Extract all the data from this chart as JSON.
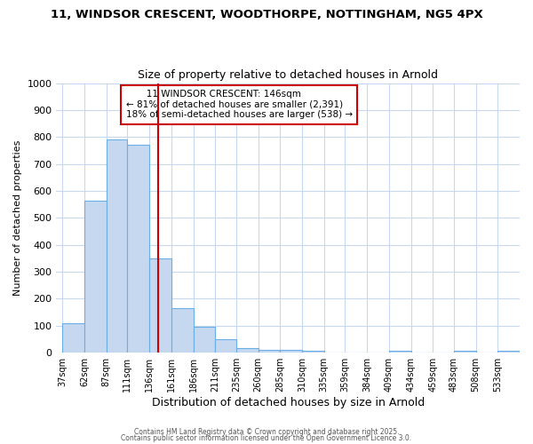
{
  "title_line1": "11, WINDSOR CRESCENT, WOODTHORPE, NOTTINGHAM, NG5 4PX",
  "title_line2": "Size of property relative to detached houses in Arnold",
  "xlabel": "Distribution of detached houses by size in Arnold",
  "ylabel": "Number of detached properties",
  "bar_left_edges": [
    37,
    62,
    87,
    111,
    136,
    161,
    186,
    211,
    235,
    260,
    285,
    310,
    335,
    359,
    384,
    409,
    434,
    459,
    483,
    508,
    533
  ],
  "bar_widths": [
    25,
    25,
    24,
    25,
    25,
    25,
    25,
    24,
    25,
    25,
    25,
    25,
    24,
    25,
    25,
    25,
    25,
    24,
    25,
    25,
    25
  ],
  "bar_heights": [
    110,
    565,
    790,
    770,
    350,
    165,
    95,
    50,
    18,
    12,
    10,
    8,
    0,
    0,
    0,
    8,
    0,
    0,
    8,
    0,
    8
  ],
  "bar_color": "#c5d8f0",
  "bar_edge_color": "#6aaee8",
  "red_line_x": 146,
  "annotation_title": "11 WINDSOR CRESCENT: 146sqm",
  "annotation_line2": "← 81% of detached houses are smaller (2,391)",
  "annotation_line3": "18% of semi-detached houses are larger (538) →",
  "annotation_box_color": "#cc0000",
  "ylim": [
    0,
    1000
  ],
  "xlim": [
    30,
    558
  ],
  "background_color": "#ffffff",
  "grid_color": "#c8d8f0",
  "tick_labels": [
    "37sqm",
    "62sqm",
    "87sqm",
    "111sqm",
    "136sqm",
    "161sqm",
    "186sqm",
    "211sqm",
    "235sqm",
    "260sqm",
    "285sqm",
    "310sqm",
    "335sqm",
    "359sqm",
    "384sqm",
    "409sqm",
    "434sqm",
    "459sqm",
    "483sqm",
    "508sqm",
    "533sqm"
  ],
  "tick_positions": [
    37,
    62,
    87,
    111,
    136,
    161,
    186,
    211,
    235,
    260,
    285,
    310,
    335,
    359,
    384,
    409,
    434,
    459,
    483,
    508,
    533
  ],
  "footer_line1": "Contains HM Land Registry data © Crown copyright and database right 2025.",
  "footer_line2": "Contains public sector information licensed under the Open Government Licence 3.0."
}
